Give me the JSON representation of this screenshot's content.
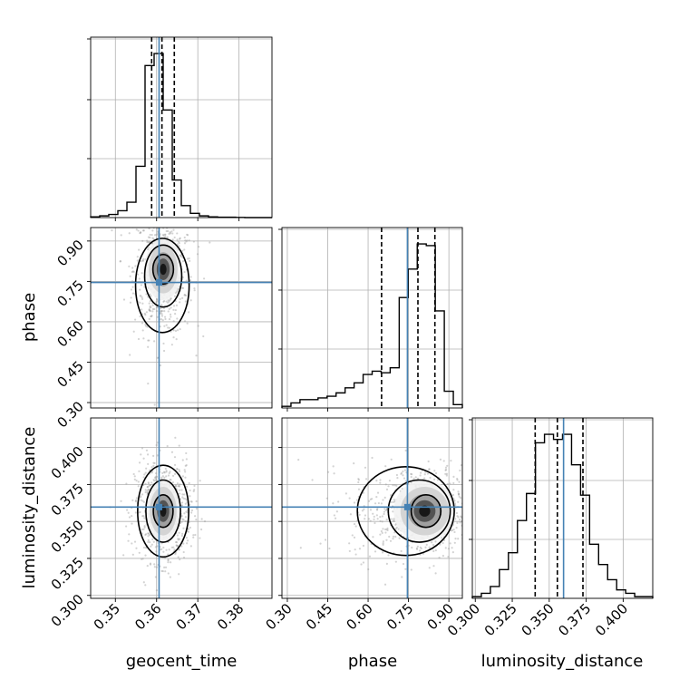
{
  "figure": {
    "type": "corner-plot",
    "colors": {
      "truth": "#4682b4",
      "hist": "#000000",
      "grid": "#b0b0b0",
      "scatter": "#9e9e9e"
    }
  },
  "chart_data": [
    {
      "type": "bar",
      "parameter": "geocent_time",
      "xlabel": "geocent_time",
      "xlim": [
        0.344,
        0.388
      ],
      "xticks": [
        "0.35",
        "0.36",
        "0.37",
        "0.38"
      ],
      "xtick_values": [
        0.35,
        0.36,
        0.37,
        0.38
      ],
      "bin_edges": [
        0.344,
        0.3462,
        0.3484,
        0.3506,
        0.3528,
        0.355,
        0.3572,
        0.3594,
        0.3616,
        0.3638,
        0.366,
        0.3682,
        0.3704,
        0.3726,
        0.3748,
        0.377,
        0.3792,
        0.3814,
        0.3836,
        0.3858,
        0.388
      ],
      "counts": [
        0.004,
        0.01,
        0.018,
        0.04,
        0.09,
        0.3,
        0.89,
        0.96,
        0.63,
        0.22,
        0.07,
        0.025,
        0.01,
        0.004,
        0.002,
        0.002,
        0.001,
        0,
        0,
        0
      ],
      "quantiles": [
        0.3588,
        0.3613,
        0.3643
      ],
      "truth": 0.3606
    },
    {
      "type": "bar",
      "parameter": "phase",
      "xlabel": "phase",
      "xlim": [
        0.28,
        0.95
      ],
      "xticks": [
        "0.30",
        "0.45",
        "0.60",
        "0.75",
        "0.90"
      ],
      "xtick_values": [
        0.3,
        0.45,
        0.6,
        0.75,
        0.9
      ],
      "bin_edges": [
        0.28,
        0.3135,
        0.347,
        0.3805,
        0.414,
        0.4475,
        0.481,
        0.5145,
        0.548,
        0.5815,
        0.615,
        0.6485,
        0.682,
        0.7155,
        0.749,
        0.7825,
        0.816,
        0.8495,
        0.883,
        0.9165,
        0.95
      ],
      "counts": [
        0.01,
        0.03,
        0.05,
        0.05,
        0.06,
        0.07,
        0.09,
        0.12,
        0.15,
        0.2,
        0.22,
        0.21,
        0.24,
        0.66,
        0.83,
        0.98,
        0.97,
        0.58,
        0.1,
        0.02
      ],
      "quantiles": [
        0.65,
        0.785,
        0.848
      ],
      "truth": 0.746
    },
    {
      "type": "bar",
      "parameter": "luminosity_distance",
      "xlabel": "luminosity_distance",
      "xlim": [
        0.298,
        0.42
      ],
      "xticks": [
        "0.300",
        "0.325",
        "0.350",
        "0.375",
        "0.400"
      ],
      "xtick_values": [
        0.3,
        0.325,
        0.35,
        0.375,
        0.4
      ],
      "bin_edges": [
        0.298,
        0.3041,
        0.3102,
        0.3163,
        0.3224,
        0.3285,
        0.3346,
        0.3407,
        0.3468,
        0.3529,
        0.359,
        0.3651,
        0.3712,
        0.3773,
        0.3834,
        0.3895,
        0.3956,
        0.4017,
        0.4078,
        0.4139,
        0.42
      ],
      "counts": [
        0.01,
        0.03,
        0.07,
        0.17,
        0.27,
        0.46,
        0.62,
        0.92,
        0.97,
        0.94,
        0.97,
        0.79,
        0.61,
        0.32,
        0.2,
        0.11,
        0.05,
        0.03,
        0.01,
        0.01
      ],
      "quantiles": [
        0.3405,
        0.3555,
        0.3728
      ],
      "truth": 0.3597
    },
    {
      "type": "scatter",
      "x_parameter": "geocent_time",
      "y_parameter": "phase",
      "ylabel": "phase",
      "xlim": [
        0.344,
        0.388
      ],
      "ylim": [
        0.28,
        0.95
      ],
      "yticks": [
        "0.30",
        "0.45",
        "0.60",
        "0.75",
        "0.90"
      ],
      "ytick_values": [
        0.3,
        0.45,
        0.6,
        0.75,
        0.9
      ],
      "center": [
        0.3616,
        0.795
      ],
      "contours": [
        {
          "level": 0.39,
          "cx": 0.3616,
          "cy": 0.795,
          "rx": 0.0025,
          "ry": 0.055
        },
        {
          "level": 0.86,
          "cx": 0.3616,
          "cy": 0.77,
          "rx": 0.0045,
          "ry": 0.115
        },
        {
          "level": 0.99,
          "cx": 0.3614,
          "cy": 0.735,
          "rx": 0.0065,
          "ry": 0.175
        }
      ],
      "truth": [
        0.3606,
        0.746
      ]
    },
    {
      "type": "scatter",
      "x_parameter": "geocent_time",
      "y_parameter": "luminosity_distance",
      "ylabel": "luminosity_distance",
      "xlim": [
        0.344,
        0.388
      ],
      "ylim": [
        0.298,
        0.42
      ],
      "yticks": [
        "0.300",
        "0.325",
        "0.350",
        "0.375",
        "0.400"
      ],
      "ytick_values": [
        0.3,
        0.325,
        0.35,
        0.375,
        0.4
      ],
      "center": [
        0.3616,
        0.357
      ],
      "contours": [
        {
          "level": 0.39,
          "cx": 0.3616,
          "cy": 0.357,
          "rx": 0.0024,
          "ry": 0.011
        },
        {
          "level": 0.86,
          "cx": 0.3616,
          "cy": 0.357,
          "rx": 0.0042,
          "ry": 0.021
        },
        {
          "level": 0.99,
          "cx": 0.3616,
          "cy": 0.357,
          "rx": 0.0062,
          "ry": 0.031
        }
      ],
      "truth": [
        0.3606,
        0.3597
      ]
    },
    {
      "type": "scatter",
      "x_parameter": "phase",
      "y_parameter": "luminosity_distance",
      "xlim": [
        0.28,
        0.95
      ],
      "ylim": [
        0.298,
        0.42
      ],
      "center": [
        0.81,
        0.357
      ],
      "contours": [
        {
          "level": 0.39,
          "cx": 0.815,
          "cy": 0.357,
          "rx": 0.055,
          "ry": 0.011
        },
        {
          "level": 0.86,
          "cx": 0.79,
          "cy": 0.357,
          "rx": 0.115,
          "ry": 0.021
        },
        {
          "level": 0.99,
          "cx": 0.74,
          "cy": 0.357,
          "rx": 0.18,
          "ry": 0.03
        }
      ],
      "truth": [
        0.746,
        0.3597
      ]
    }
  ]
}
